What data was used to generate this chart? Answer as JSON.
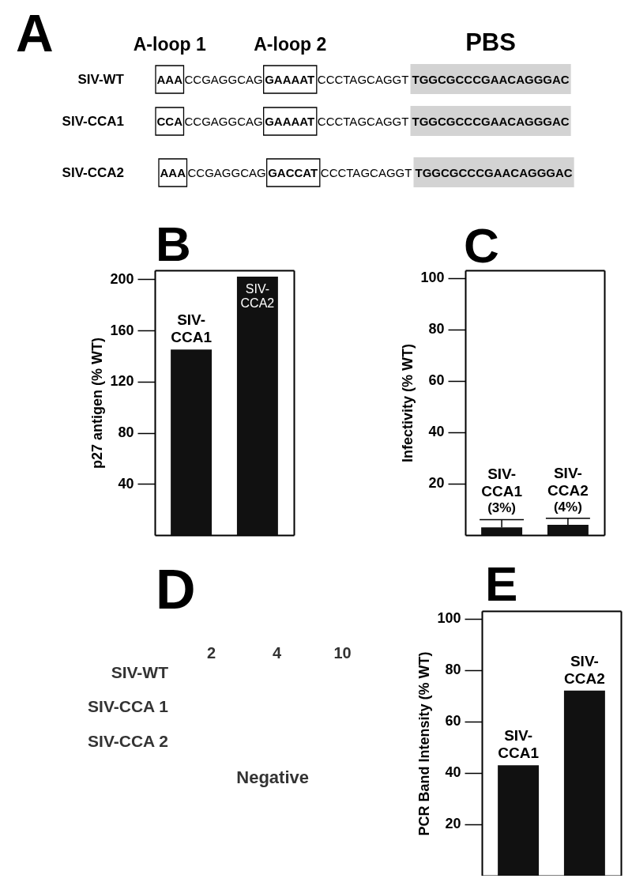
{
  "chart_data": [
    {
      "type": "other",
      "title": "A",
      "annotations": [
        "A-loop 1",
        "A-loop 2",
        "PBS",
        "SIV-WT",
        "AAA",
        "CCGAGGCAG",
        "GAAAAT",
        "CCCTAGCAGGT",
        "TGGCGCCCGAACAGGGAC",
        "SIV-CCA1",
        "CCA",
        "CCGAGGCAG",
        "GAAAAT",
        "CCCTAGCAGGT",
        "TGGCGCCCGAACAGGGAC",
        "SIV-CCA2",
        "AAA",
        "CCGAGGCAG",
        "GACCAT",
        "CCCTAGCAGGT",
        "TGGCGCCCGAACAGGGAC"
      ]
    },
    {
      "type": "bar",
      "title": "B",
      "ylabel": "p27 antigen (% WT)",
      "categories": [
        "SIV-CCA1",
        "SIV-CCA2"
      ],
      "values": [
        145,
        202
      ],
      "color": "#111111",
      "ylim": [
        0,
        207
      ],
      "yticks": [
        40,
        80,
        120,
        160,
        200
      ],
      "tick_labels": "y"
    },
    {
      "type": "bar",
      "title": "C",
      "ylabel": "Infectivity (% WT)",
      "categories": [
        "SIV-CCA1",
        "SIV-CCA2"
      ],
      "values": [
        3,
        4
      ],
      "errors": [
        [
          3,
          6
        ],
        [
          4,
          6.5
        ]
      ],
      "value_labels": [
        "(3%)",
        "(4%)"
      ],
      "color": "#111111",
      "ylim": [
        0,
        103
      ],
      "yticks": [
        20,
        40,
        60,
        80,
        100
      ],
      "tick_labels": "y"
    },
    {
      "type": "other",
      "title": "D",
      "annotations": [
        "2",
        "4",
        "10",
        "SIV-WT",
        "SIV-CCA 1",
        "SIV-CCA 2",
        "Negative"
      ]
    },
    {
      "type": "bar",
      "title": "E",
      "ylabel": "PCR Band Intensity (% WT)",
      "categories": [
        "SIV-CCA1",
        "SIV-CCA2"
      ],
      "values": [
        43,
        72
      ],
      "color": "#111111",
      "ylim": [
        0,
        103
      ],
      "yticks": [
        20,
        40,
        60,
        80,
        100
      ],
      "tick_labels": "y"
    }
  ]
}
